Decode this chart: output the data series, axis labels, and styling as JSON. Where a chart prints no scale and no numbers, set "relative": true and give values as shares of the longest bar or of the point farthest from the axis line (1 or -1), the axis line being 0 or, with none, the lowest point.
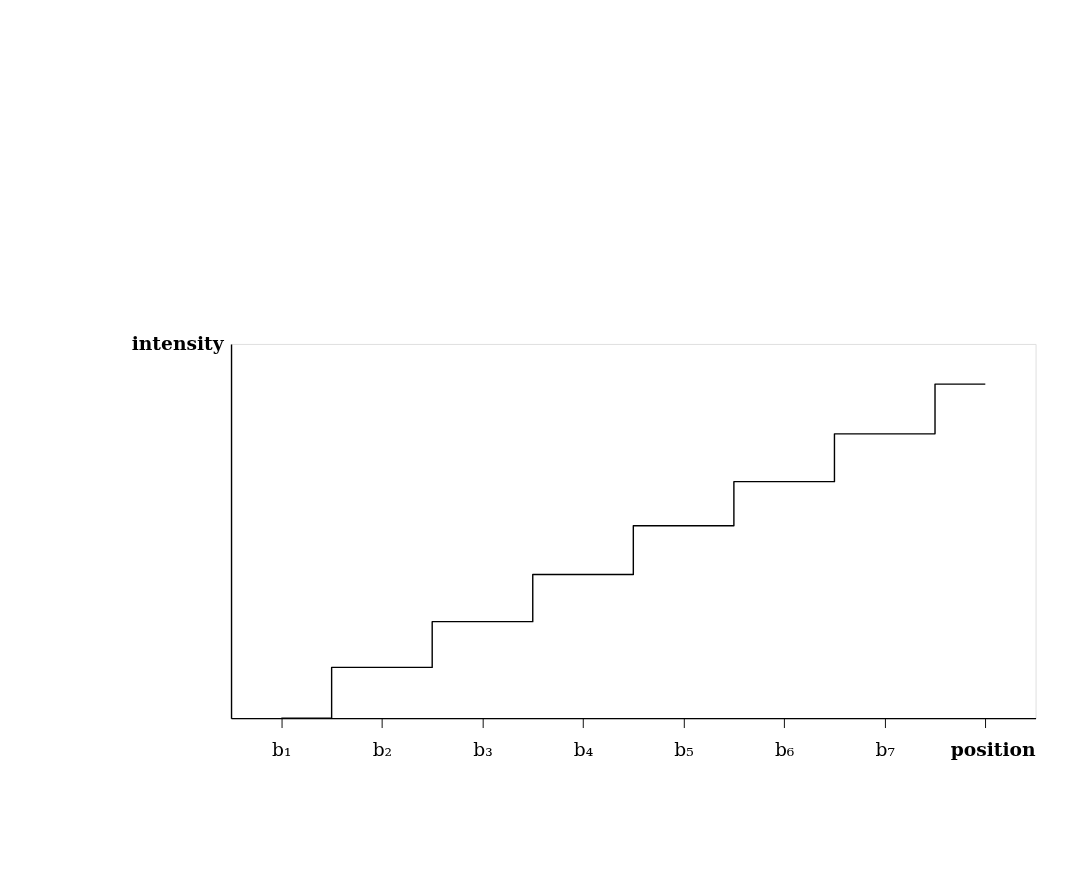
{
  "chart_data": {
    "type": "step",
    "relative": true,
    "xlabel": "position",
    "ylabel": "intensity",
    "categories": [
      "b₁",
      "b₂",
      "b₃",
      "b₄",
      "b₅",
      "b₆",
      "b₇",
      null
    ],
    "series": [
      {
        "color": "#000000",
        "values": [
          0,
          0.152,
          0.289,
          0.43,
          0.576,
          0.708,
          0.851,
          1
        ]
      }
    ],
    "grid": false,
    "marker": "none",
    "line_style": "solid"
  }
}
